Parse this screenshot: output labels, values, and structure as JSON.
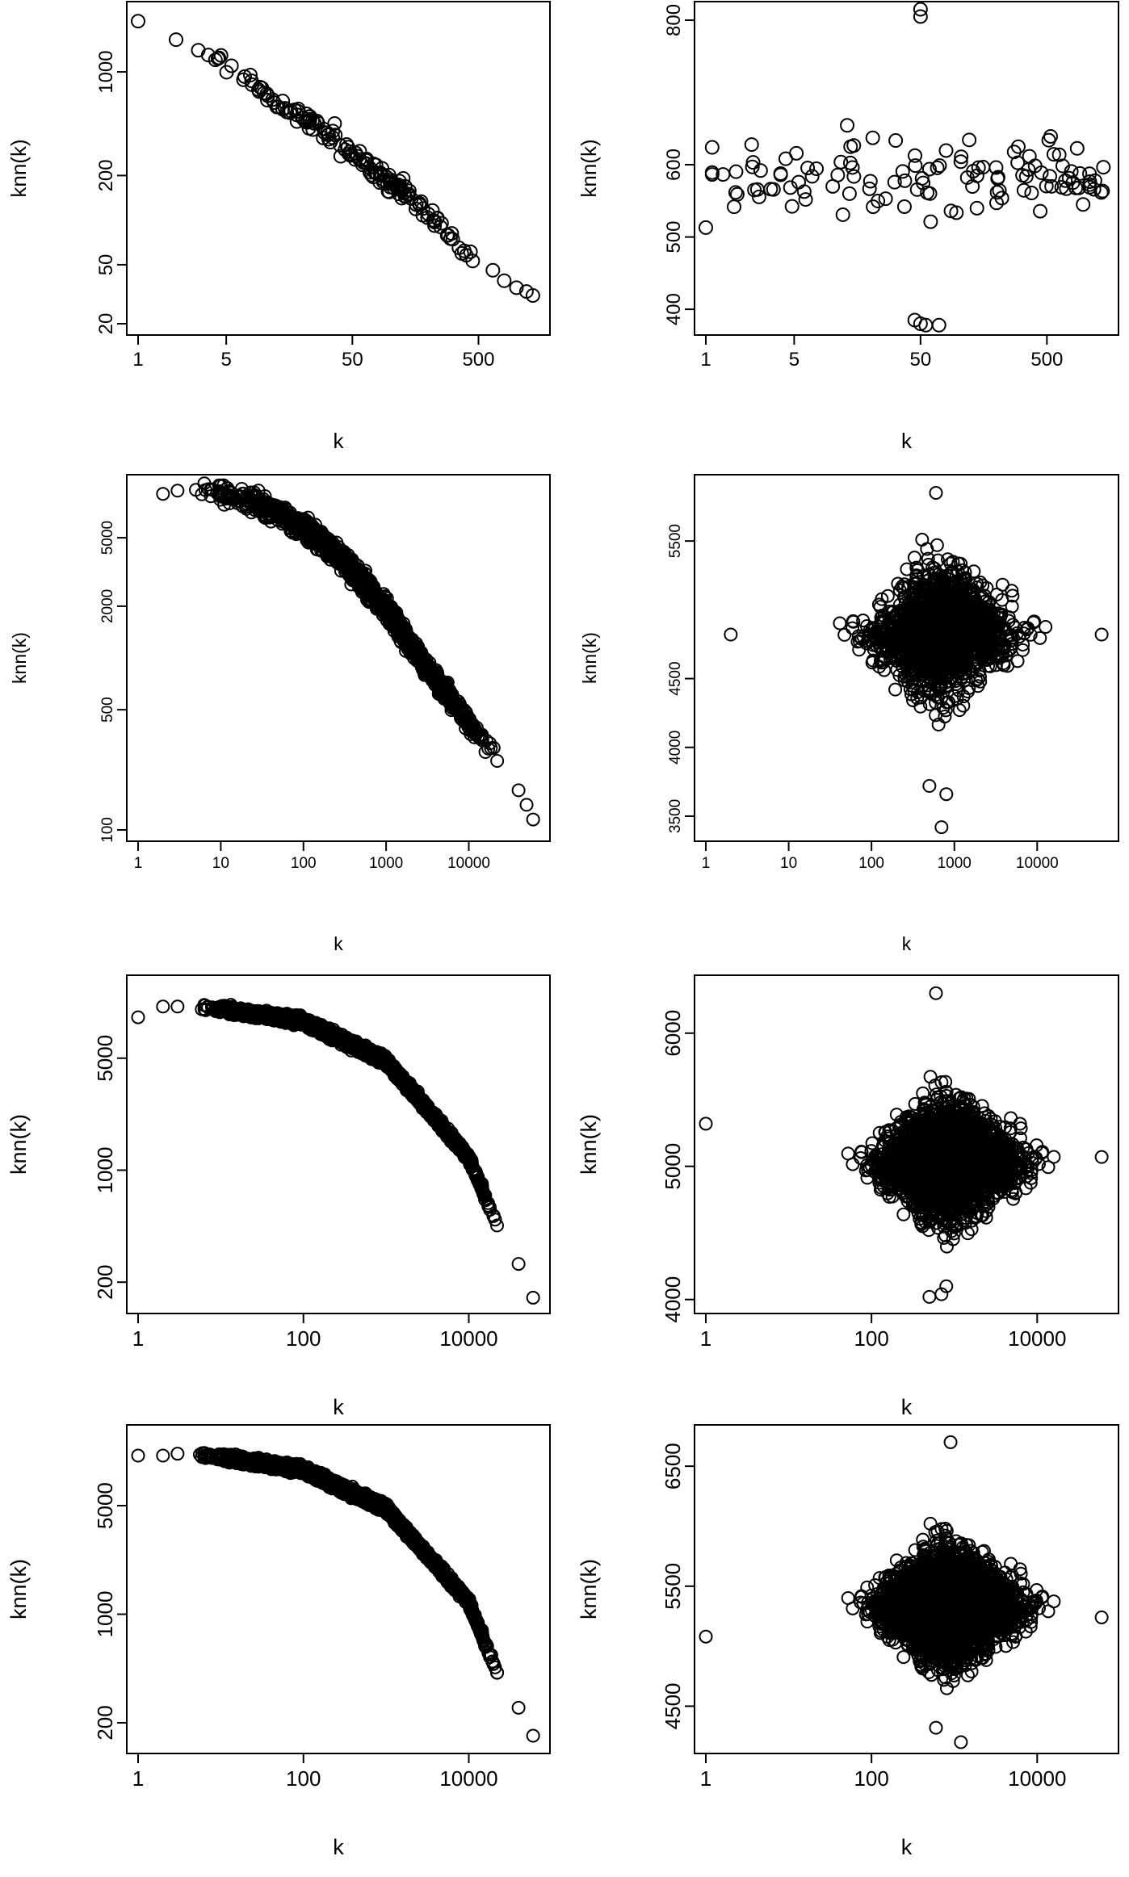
{
  "chart_data": [
    {
      "type": "scatter",
      "xlabel": "k",
      "ylabel": "knn(k)",
      "xscale": "log",
      "yscale": "log",
      "xlim": [
        1,
        1500
      ],
      "ylim": [
        20,
        2500
      ],
      "xticks": [
        {
          "v": 1,
          "label": "1"
        },
        {
          "v": 5,
          "label": "5"
        },
        {
          "v": 50,
          "label": "50"
        },
        {
          "v": 500,
          "label": "500"
        }
      ],
      "yticks": [
        {
          "v": 20,
          "label": "20"
        },
        {
          "v": 50,
          "label": "50"
        },
        {
          "v": 200,
          "label": "200"
        },
        {
          "v": 1000,
          "label": "1000"
        }
      ],
      "n_points": 130,
      "points": [
        [
          1,
          2200
        ],
        [
          2,
          1650
        ],
        [
          3,
          1400
        ],
        [
          3.6,
          1300
        ],
        [
          4.3,
          1230
        ],
        [
          5.5,
          1100
        ],
        [
          7,
          930
        ],
        [
          8,
          820
        ],
        [
          9,
          760
        ],
        [
          10,
          720
        ],
        [
          12,
          620
        ],
        [
          14,
          560
        ],
        [
          16,
          530
        ],
        [
          20,
          490
        ],
        [
          25,
          450
        ],
        [
          30,
          390
        ],
        [
          35,
          360
        ],
        [
          40,
          320
        ],
        [
          48,
          290
        ],
        [
          55,
          270
        ],
        [
          65,
          240
        ],
        [
          75,
          210
        ],
        [
          85,
          200
        ],
        [
          100,
          180
        ],
        [
          120,
          160
        ],
        [
          140,
          150
        ],
        [
          170,
          130
        ],
        [
          200,
          110
        ],
        [
          250,
          90
        ],
        [
          300,
          75
        ],
        [
          350,
          65
        ],
        [
          400,
          58
        ],
        [
          450,
          53
        ],
        [
          800,
          39
        ],
        [
          1000,
          35
        ],
        [
          1200,
          33
        ],
        [
          1350,
          31
        ]
      ]
    },
    {
      "type": "scatter",
      "xlabel": "k",
      "ylabel": "knn(k)",
      "xscale": "log",
      "yscale": "linear",
      "xlim": [
        1,
        1500
      ],
      "ylim": [
        380,
        810
      ],
      "xticks": [
        {
          "v": 1,
          "label": "1"
        },
        {
          "v": 5,
          "label": "5"
        },
        {
          "v": 50,
          "label": "50"
        },
        {
          "v": 500,
          "label": "500"
        }
      ],
      "yticks": [
        {
          "v": 400,
          "label": "400"
        },
        {
          "v": 500,
          "label": "500"
        },
        {
          "v": 600,
          "label": "600"
        },
        {
          "v": 800,
          "label": "800"
        }
      ],
      "n_points": 120,
      "points": [
        [
          1,
          513
        ],
        [
          50,
          815
        ],
        [
          50,
          805
        ],
        [
          45,
          385
        ],
        [
          50,
          380
        ],
        [
          55,
          378
        ],
        [
          70,
          378
        ],
        [
          700,
          578
        ],
        [
          1200,
          578
        ]
      ]
    },
    {
      "type": "scatter",
      "xlabel": "k",
      "ylabel": "knn(k)",
      "xscale": "log",
      "yscale": "log",
      "xlim": [
        1,
        70000
      ],
      "ylim": [
        100,
        10000
      ],
      "xticks": [
        {
          "v": 1,
          "label": "1"
        },
        {
          "v": 10,
          "label": "10"
        },
        {
          "v": 100,
          "label": "100"
        },
        {
          "v": 1000,
          "label": "1000"
        },
        {
          "v": 10000,
          "label": "10000"
        }
      ],
      "yticks": [
        {
          "v": 100,
          "label": "100"
        },
        {
          "v": 500,
          "label": "500"
        },
        {
          "v": 2000,
          "label": "2000"
        },
        {
          "v": 5000,
          "label": "5000"
        }
      ],
      "n_points": 1200,
      "points": [
        [
          2,
          9000
        ],
        [
          3,
          9400
        ],
        [
          5,
          9500
        ],
        [
          10,
          9200
        ],
        [
          30,
          7800
        ],
        [
          100,
          5800
        ],
        [
          300,
          3800
        ],
        [
          1000,
          1900
        ],
        [
          3000,
          900
        ],
        [
          10000,
          420
        ],
        [
          20000,
          300
        ],
        [
          40000,
          170
        ],
        [
          50000,
          140
        ],
        [
          60000,
          115
        ]
      ]
    },
    {
      "type": "scatter",
      "xlabel": "k",
      "ylabel": "knn(k)",
      "xscale": "log",
      "yscale": "linear",
      "xlim": [
        1,
        70000
      ],
      "ylim": [
        3400,
        5900
      ],
      "xticks": [
        {
          "v": 1,
          "label": "1"
        },
        {
          "v": 10,
          "label": "10"
        },
        {
          "v": 100,
          "label": "100"
        },
        {
          "v": 1000,
          "label": "1000"
        },
        {
          "v": 10000,
          "label": "10000"
        }
      ],
      "yticks": [
        {
          "v": 3500,
          "label": "3500"
        },
        {
          "v": 4000,
          "label": "4000"
        },
        {
          "v": 4500,
          "label": "4500"
        },
        {
          "v": 5500,
          "label": "5500"
        }
      ],
      "n_points": 1500,
      "points": [
        [
          600,
          5850
        ],
        [
          700,
          3420
        ],
        [
          800,
          3660
        ],
        [
          500,
          3720
        ],
        [
          2,
          4820
        ],
        [
          60000,
          4820
        ]
      ]
    },
    {
      "type": "scatter",
      "xlabel": "k",
      "ylabel": "knn(k)",
      "xscale": "log",
      "yscale": "log",
      "xlim": [
        1,
        70000
      ],
      "ylim": [
        150,
        14000
      ],
      "xticks": [
        {
          "v": 1,
          "label": "1"
        },
        {
          "v": 100,
          "label": "100"
        },
        {
          "v": 10000,
          "label": "10000"
        }
      ],
      "yticks": [
        {
          "v": 200,
          "label": "200"
        },
        {
          "v": 1000,
          "label": "1000"
        },
        {
          "v": 5000,
          "label": "5000"
        }
      ],
      "n_points": 2500,
      "points": [
        [
          1,
          9000
        ],
        [
          2,
          10500
        ],
        [
          3,
          10500
        ],
        [
          10,
          10200
        ],
        [
          100,
          8500
        ],
        [
          1000,
          4800
        ],
        [
          10000,
          1200
        ],
        [
          20000,
          520
        ],
        [
          40000,
          260
        ],
        [
          60000,
          160
        ]
      ]
    },
    {
      "type": "scatter",
      "xlabel": "k",
      "ylabel": "knn(k)",
      "xscale": "log",
      "yscale": "linear",
      "xlim": [
        1,
        70000
      ],
      "ylim": [
        3980,
        6350
      ],
      "xticks": [
        {
          "v": 1,
          "label": "1"
        },
        {
          "v": 100,
          "label": "100"
        },
        {
          "v": 10000,
          "label": "10000"
        }
      ],
      "yticks": [
        {
          "v": 4000,
          "label": "4000"
        },
        {
          "v": 5000,
          "label": "5000"
        },
        {
          "v": 6000,
          "label": "6000"
        }
      ],
      "n_points": 2500,
      "points": [
        [
          1,
          5320
        ],
        [
          60000,
          5070
        ],
        [
          600,
          6300
        ],
        [
          700,
          4040
        ],
        [
          800,
          4100
        ],
        [
          500,
          4020
        ]
      ]
    },
    {
      "type": "scatter",
      "xlabel": "k",
      "ylabel": "knn(k)",
      "xscale": "log",
      "yscale": "log",
      "xlim": [
        1,
        70000
      ],
      "ylim": [
        150,
        14000
      ],
      "xticks": [
        {
          "v": 1,
          "label": "1"
        },
        {
          "v": 100,
          "label": "100"
        },
        {
          "v": 10000,
          "label": "10000"
        }
      ],
      "yticks": [
        {
          "v": 200,
          "label": "200"
        },
        {
          "v": 1000,
          "label": "1000"
        },
        {
          "v": 5000,
          "label": "5000"
        }
      ],
      "n_points": 3000,
      "points": [
        [
          1,
          10500
        ],
        [
          2,
          10500
        ],
        [
          3,
          10800
        ],
        [
          10,
          10300
        ],
        [
          100,
          8500
        ],
        [
          1000,
          4800
        ],
        [
          10000,
          1200
        ],
        [
          20000,
          480
        ],
        [
          40000,
          250
        ],
        [
          60000,
          165
        ]
      ]
    },
    {
      "type": "scatter",
      "xlabel": "k",
      "ylabel": "knn(k)",
      "xscale": "log",
      "yscale": "linear",
      "xlim": [
        1,
        70000
      ],
      "ylim": [
        4200,
        6750
      ],
      "xticks": [
        {
          "v": 1,
          "label": "1"
        },
        {
          "v": 100,
          "label": "100"
        },
        {
          "v": 10000,
          "label": "10000"
        }
      ],
      "yticks": [
        {
          "v": 4500,
          "label": "4500"
        },
        {
          "v": 5500,
          "label": "5500"
        },
        {
          "v": 6500,
          "label": "6500"
        }
      ],
      "n_points": 3000,
      "points": [
        [
          1,
          5080
        ],
        [
          60000,
          5240
        ],
        [
          900,
          6700
        ],
        [
          1200,
          4200
        ],
        [
          600,
          4320
        ]
      ]
    }
  ]
}
